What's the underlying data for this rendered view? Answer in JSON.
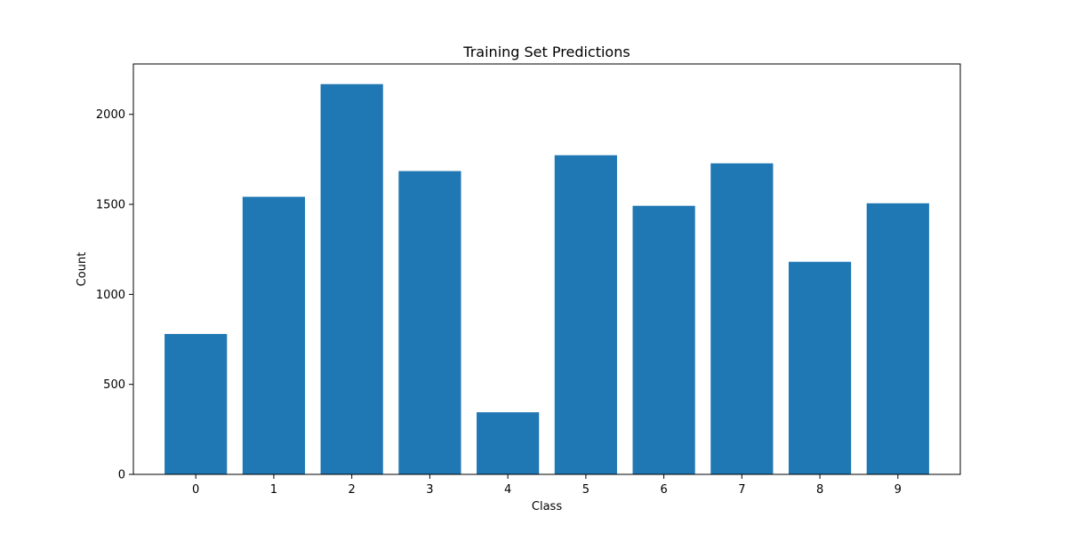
{
  "chart_data": {
    "type": "bar",
    "title": "Training Set Predictions",
    "xlabel": "Class",
    "ylabel": "Count",
    "categories": [
      "0",
      "1",
      "2",
      "3",
      "4",
      "5",
      "6",
      "7",
      "8",
      "9"
    ],
    "values": [
      780,
      1542,
      2168,
      1685,
      345,
      1773,
      1492,
      1728,
      1181,
      1506
    ],
    "ylim": [
      0,
      2280
    ],
    "yticks": [
      0,
      500,
      1000,
      1500,
      2000
    ],
    "grid": false,
    "colors": {
      "bar": "#1f77b4",
      "axes": "#000000",
      "background": "#ffffff"
    }
  }
}
